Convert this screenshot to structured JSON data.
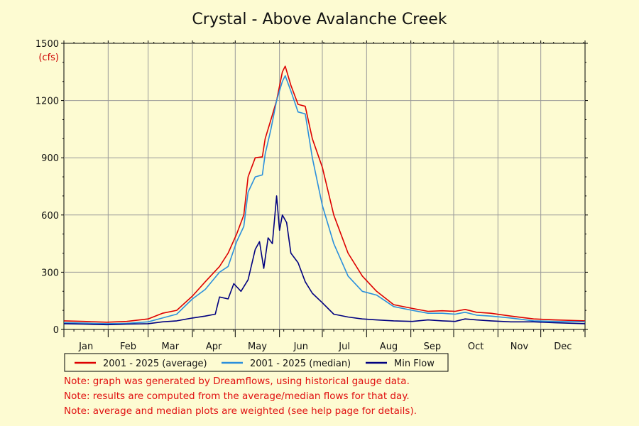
{
  "chart_data": {
    "type": "line",
    "title": "Crystal - Above Avalanche Creek",
    "ylabel": "(cfs)",
    "xlabel": "",
    "ylim": [
      0,
      1500
    ],
    "yticks": [
      0,
      300,
      600,
      900,
      1200,
      1500
    ],
    "ytick_labels": [
      "0",
      "300",
      "600",
      "900",
      "1200",
      "1500"
    ],
    "xlim": [
      1,
      366
    ],
    "month_labels": [
      "Jan",
      "Feb",
      "Mar",
      "Apr",
      "May",
      "Jun",
      "Jul",
      "Aug",
      "Sep",
      "Oct",
      "Nov",
      "Dec"
    ],
    "x_unit_note": "day of year",
    "grid": true,
    "legend_position": "bottom-left",
    "series": [
      {
        "name": "2001 - 2025 (average)",
        "color": "#dd0000",
        "x": [
          1,
          15,
          31,
          45,
          60,
          70,
          80,
          91,
          100,
          110,
          116,
          122,
          127,
          130,
          135,
          140,
          142,
          146,
          150,
          154,
          156,
          160,
          165,
          170,
          175,
          182,
          190,
          200,
          210,
          220,
          232,
          245,
          256,
          266,
          275,
          282,
          290,
          300,
          314,
          330,
          345,
          366
        ],
        "values": [
          45,
          42,
          38,
          42,
          55,
          85,
          100,
          175,
          250,
          330,
          400,
          500,
          600,
          800,
          900,
          905,
          1000,
          1100,
          1200,
          1350,
          1380,
          1280,
          1180,
          1170,
          1000,
          850,
          600,
          400,
          280,
          200,
          130,
          110,
          95,
          98,
          95,
          105,
          90,
          85,
          70,
          55,
          50,
          45
        ]
      },
      {
        "name": "2001 - 2025 (median)",
        "color": "#2a8fdc",
        "x": [
          1,
          15,
          31,
          45,
          60,
          70,
          80,
          91,
          100,
          110,
          116,
          122,
          127,
          130,
          135,
          140,
          142,
          146,
          150,
          154,
          156,
          160,
          165,
          170,
          175,
          182,
          190,
          200,
          210,
          220,
          232,
          245,
          256,
          266,
          275,
          282,
          290,
          300,
          314,
          330,
          345,
          366
        ],
        "values": [
          35,
          33,
          30,
          32,
          40,
          60,
          80,
          160,
          210,
          300,
          330,
          460,
          540,
          720,
          800,
          810,
          920,
          1050,
          1200,
          1300,
          1330,
          1250,
          1140,
          1130,
          900,
          650,
          450,
          280,
          200,
          180,
          120,
          100,
          85,
          85,
          80,
          90,
          75,
          70,
          60,
          45,
          42,
          40
        ]
      },
      {
        "name": "Min Flow",
        "color": "#000080",
        "x": [
          1,
          15,
          31,
          45,
          60,
          70,
          80,
          91,
          100,
          107,
          110,
          116,
          120,
          125,
          130,
          135,
          138,
          141,
          144,
          147,
          150,
          152,
          154,
          157,
          160,
          165,
          170,
          175,
          182,
          190,
          200,
          210,
          220,
          232,
          245,
          256,
          266,
          275,
          282,
          290,
          300,
          314,
          330,
          345,
          366
        ],
        "values": [
          30,
          28,
          25,
          28,
          30,
          40,
          45,
          60,
          70,
          80,
          170,
          160,
          240,
          200,
          260,
          420,
          460,
          320,
          480,
          450,
          700,
          520,
          600,
          560,
          400,
          350,
          250,
          190,
          140,
          80,
          65,
          55,
          50,
          45,
          42,
          50,
          45,
          42,
          55,
          50,
          45,
          40,
          40,
          35,
          30
        ]
      }
    ]
  },
  "notes": [
    "Note: graph was generated by Dreamflows, using historical gauge data.",
    "Note: results are computed from the average/median flows for that day.",
    "Note: average and median plots are weighted (see help page for details)."
  ]
}
